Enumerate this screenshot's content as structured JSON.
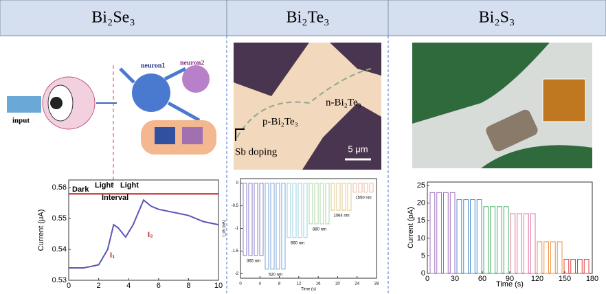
{
  "headers": [
    "Bi₂Se₃",
    "Bi₂Te₃",
    "Bi₂S₃"
  ],
  "panel1": {
    "labels": {
      "input": "input",
      "neuron1": "neuron1",
      "neuron2": "neuron2"
    },
    "chart": {
      "type": "line",
      "ylabel": "Current (μA)",
      "x": [
        0,
        1,
        2,
        2.6,
        3,
        3.3,
        3.8,
        4.3,
        5,
        5.5,
        6,
        7,
        8,
        9,
        10
      ],
      "values": [
        0.534,
        0.534,
        0.535,
        0.54,
        0.548,
        0.547,
        0.544,
        0.548,
        0.556,
        0.554,
        0.553,
        0.552,
        0.551,
        0.549,
        0.548
      ],
      "color": "#5a55b5",
      "threshold": 0.558,
      "xlim": [
        0,
        10
      ],
      "xticks": [
        0,
        2,
        4,
        6,
        8,
        10
      ],
      "ylim": [
        0.53,
        0.5625
      ],
      "yticks": [
        0.53,
        0.54,
        0.55,
        0.56
      ],
      "annotations": [
        "Dark",
        "Light",
        "Light",
        "Interval",
        "I₁",
        "I₂"
      ]
    }
  },
  "panel2": {
    "labels": [
      "n-Bi₂Te₃",
      "p-Bi₂Te₃",
      "Sb doping",
      "5 μm"
    ],
    "chart": {
      "type": "pulse",
      "ylabel": "I_ds (nA)",
      "xlabel": "Time (s)",
      "categories": [
        "365 nm",
        "520 nm",
        "660 nm",
        "880 nm",
        "1064 nm",
        "1550 nm"
      ],
      "values": [
        -1.6,
        -1.9,
        -1.2,
        -0.9,
        -0.6,
        -0.2
      ],
      "colors": [
        "#8a7fc8",
        "#7aa6d8",
        "#9ad0e0",
        "#a8d8a0",
        "#e0c888",
        "#e8b8a0"
      ],
      "xlim": [
        0,
        28
      ],
      "xticks": [
        0,
        4,
        8,
        12,
        16,
        20,
        24,
        28
      ],
      "ylim": [
        -2.1,
        0.1
      ],
      "yticks": [
        0.0,
        -0.5,
        -1.0,
        -1.5,
        -2.0
      ]
    }
  },
  "panel3": {
    "chart": {
      "type": "pulse",
      "ylabel": "Current (pA)",
      "xlabel": "Time (s)",
      "values": [
        23,
        21,
        19,
        17,
        9,
        4
      ],
      "colors": [
        "#a070c0",
        "#5090d0",
        "#40b060",
        "#e070a0",
        "#f09040",
        "#e04040"
      ],
      "xlim": [
        0,
        180
      ],
      "xticks": [
        0,
        30,
        60,
        90,
        120,
        150,
        180
      ],
      "ylim": [
        0,
        26
      ],
      "yticks": [
        0,
        5,
        10,
        15,
        20,
        25
      ]
    }
  }
}
